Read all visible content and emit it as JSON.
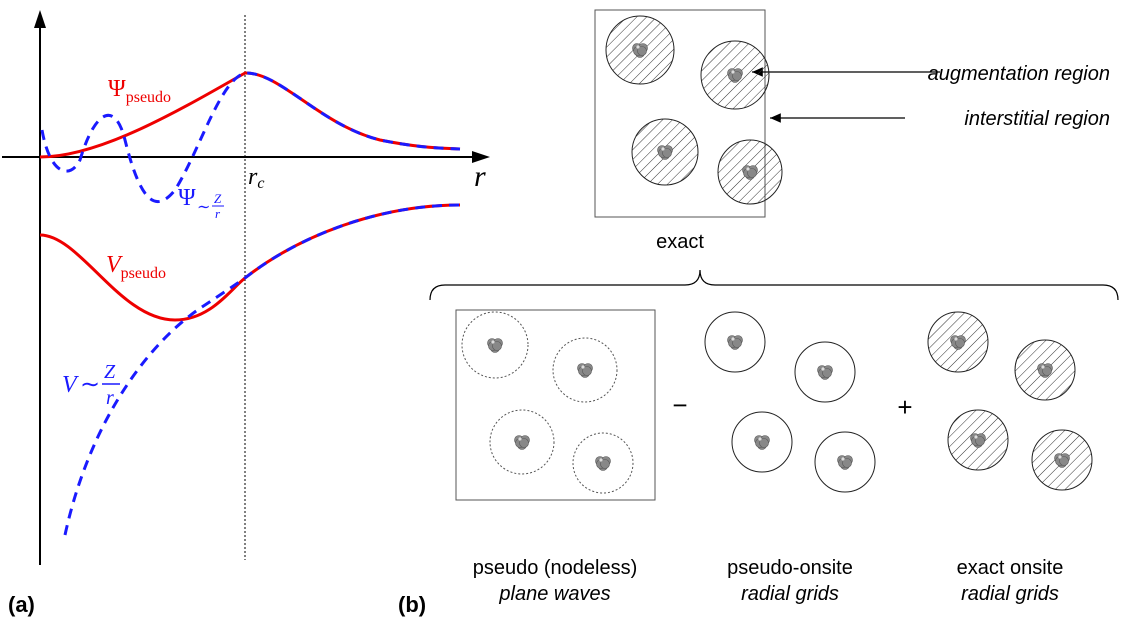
{
  "panel_a": {
    "label": "(a)",
    "r_axis": "r",
    "rc": {
      "symbol": "r",
      "subscript": "c"
    },
    "psi_pseudo": {
      "symbol": "Ψ",
      "subscript": "pseudo"
    },
    "psi_ae": {
      "symbol": "Ψ",
      "relation": "∼",
      "numerator": "Z",
      "denominator": "r"
    },
    "v_pseudo": {
      "symbol": "V",
      "subscript": "pseudo"
    },
    "v_ae": {
      "symbol": "V",
      "relation": "∼",
      "numerator": "Z",
      "denominator": "r"
    }
  },
  "panel_b": {
    "label": "(b)",
    "augmentation": "augmentation region",
    "interstitial": "interstitial region",
    "exact": "exact",
    "minus": "−",
    "plus": "+",
    "pseudo": {
      "title": "pseudo (nodeless)",
      "basis": "plane waves"
    },
    "pseudo_onsite": {
      "title": "pseudo-onsite",
      "basis": "radial grids"
    },
    "exact_onsite": {
      "title": "exact onsite",
      "basis": "radial grids"
    }
  }
}
